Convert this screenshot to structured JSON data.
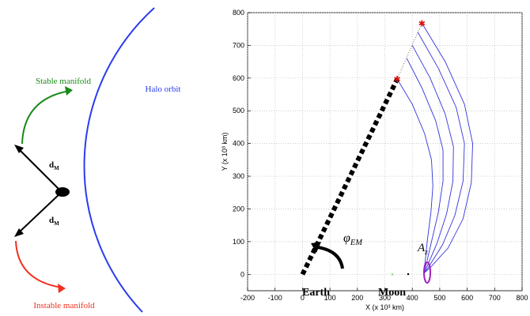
{
  "diagram": {
    "stable_label": "Stable manifold",
    "halo_label": "Halo orbit",
    "instable_label": "Instable manifold",
    "d_top": {
      "main": "d",
      "sub": "M"
    },
    "d_bottom": {
      "main": "d",
      "sub": "M"
    }
  },
  "chart_data": {
    "type": "line",
    "xlabel": "X (x 10³ km)",
    "ylabel": "Y (x 10³ km)",
    "xlim": [
      -200,
      800
    ],
    "ylim": [
      -50,
      800
    ],
    "xticks": [
      -200,
      -100,
      0,
      100,
      200,
      300,
      400,
      500,
      600,
      700,
      800
    ],
    "yticks": [
      0,
      100,
      200,
      300,
      400,
      500,
      600,
      700,
      800
    ],
    "grid": true,
    "color": "#3333dd",
    "trajectories": [
      {
        "x": [
          435,
          520,
          590,
          620,
          615,
          585,
          530,
          470,
          445
        ],
        "y": [
          768,
          650,
          520,
          400,
          280,
          170,
          80,
          25,
          5
        ]
      },
      {
        "x": [
          420,
          495,
          560,
          590,
          585,
          555,
          510,
          465,
          445
        ],
        "y": [
          740,
          630,
          510,
          400,
          285,
          180,
          90,
          30,
          5
        ]
      },
      {
        "x": [
          400,
          465,
          520,
          550,
          548,
          525,
          490,
          458,
          443
        ],
        "y": [
          700,
          600,
          490,
          390,
          285,
          185,
          95,
          32,
          5
        ]
      },
      {
        "x": [
          380,
          435,
          485,
          512,
          512,
          495,
          470,
          452,
          442
        ],
        "y": [
          660,
          570,
          470,
          380,
          285,
          190,
          100,
          35,
          5
        ]
      },
      {
        "x": [
          345,
          400,
          445,
          470,
          475,
          468,
          455,
          447,
          441
        ],
        "y": [
          597,
          520,
          430,
          350,
          270,
          190,
          105,
          40,
          5
        ]
      }
    ],
    "earth_line": {
      "x": [
        0,
        345
      ],
      "y": [
        0,
        597
      ]
    },
    "star_points": {
      "x": [
        345,
        435
      ],
      "y": [
        597,
        768
      ]
    },
    "annotations": {
      "earth": "Earth",
      "moon": "Moon",
      "phi": {
        "main": "φ",
        "sub": "EM"
      },
      "az": {
        "main": "A",
        "sub": "z"
      }
    }
  }
}
